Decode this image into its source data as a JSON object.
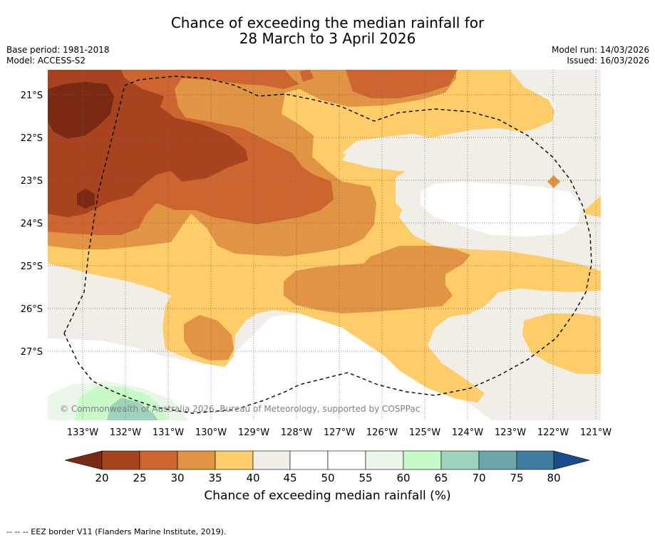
{
  "title_line1": "Chance of exceeding the median rainfall for",
  "title_line2": "28 March to 3 April 2026",
  "base_period": "Base period: 1981-2018",
  "model": "Model: ACCESS-S2",
  "model_run": "Model run: 14/03/2026",
  "issued": "Issued: 16/03/2026",
  "copyright": "© Commonwealth of Australia 2026, Bureau of Meteorology, supported by COSPPac",
  "lat_labels": [
    "21°S",
    "22°S",
    "23°S",
    "24°S",
    "25°S",
    "26°S",
    "27°S"
  ],
  "lon_labels": [
    "133°W",
    "132°W",
    "131°W",
    "130°W",
    "129°W",
    "128°W",
    "127°W",
    "126°W",
    "125°W",
    "124°W",
    "123°W",
    "122°W",
    "121°W"
  ],
  "colorbar": {
    "title": "Chance of exceeding median rainfall (%)",
    "ticks": [
      "20",
      "25",
      "30",
      "35",
      "40",
      "45",
      "50",
      "55",
      "60",
      "65",
      "70",
      "75",
      "80"
    ],
    "colors": {
      "lt20": "#7a2a12",
      "c20_25": "#a8431f",
      "c25_30": "#cd6531",
      "c30_35": "#e09444",
      "c35_40": "#fecd69",
      "c40_45": "#f1eee8",
      "c45_50": "#ffffff",
      "c50_55": "#ffffff",
      "c55_60": "#e9f6e8",
      "c60_65": "#c8fbc8",
      "c65_70": "#9ed3bb",
      "c70_75": "#6ea5a8",
      "c75_80": "#3f7ea1",
      "gt80": "#1a4c8c"
    }
  },
  "legend_footer": "--  --  -- EEZ border V11 (Flanders Marine Institute, 2019)."
}
